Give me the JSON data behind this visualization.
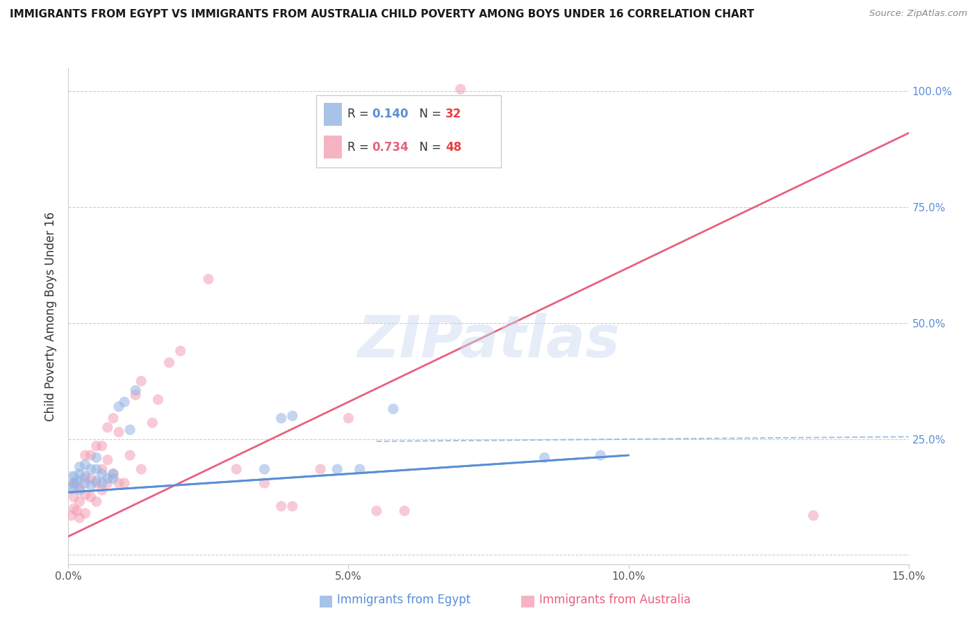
{
  "title": "IMMIGRANTS FROM EGYPT VS IMMIGRANTS FROM AUSTRALIA CHILD POVERTY AMONG BOYS UNDER 16 CORRELATION CHART",
  "source": "Source: ZipAtlas.com",
  "xlabel_egypt": "Immigrants from Egypt",
  "xlabel_australia": "Immigrants from Australia",
  "ylabel": "Child Poverty Among Boys Under 16",
  "xlim": [
    0.0,
    0.15
  ],
  "ylim": [
    -0.02,
    1.05
  ],
  "xticks": [
    0.0,
    0.05,
    0.1,
    0.15
  ],
  "xticklabels": [
    "0.0%",
    "5.0%",
    "10.0%",
    "15.0%"
  ],
  "right_yticks": [
    0.0,
    0.25,
    0.5,
    0.75,
    1.0
  ],
  "right_yticklabels": [
    "",
    "25.0%",
    "50.0%",
    "75.0%",
    "100.0%"
  ],
  "legend_egypt_R": "0.140",
  "legend_egypt_N": "32",
  "legend_australia_R": "0.734",
  "legend_australia_N": "48",
  "color_egypt": "#92B4E3",
  "color_australia": "#F4A0B5",
  "color_egypt_line": "#5B8ED6",
  "color_australia_line": "#E86080",
  "color_dashed": "#92B4E3",
  "color_right_axis": "#5B8ED6",
  "watermark": "ZIPatlas",
  "egypt_x": [
    0.0005,
    0.001,
    0.001,
    0.0015,
    0.002,
    0.002,
    0.002,
    0.003,
    0.003,
    0.003,
    0.004,
    0.004,
    0.005,
    0.005,
    0.005,
    0.006,
    0.006,
    0.007,
    0.008,
    0.008,
    0.009,
    0.01,
    0.011,
    0.012,
    0.035,
    0.038,
    0.04,
    0.048,
    0.052,
    0.058,
    0.085,
    0.095
  ],
  "egypt_y": [
    0.145,
    0.155,
    0.17,
    0.16,
    0.14,
    0.175,
    0.19,
    0.155,
    0.17,
    0.195,
    0.15,
    0.185,
    0.16,
    0.185,
    0.21,
    0.155,
    0.175,
    0.165,
    0.175,
    0.165,
    0.32,
    0.33,
    0.27,
    0.355,
    0.185,
    0.295,
    0.3,
    0.185,
    0.185,
    0.315,
    0.21,
    0.215
  ],
  "australia_x": [
    0.0005,
    0.001,
    0.001,
    0.001,
    0.0015,
    0.002,
    0.002,
    0.002,
    0.003,
    0.003,
    0.003,
    0.003,
    0.004,
    0.004,
    0.004,
    0.005,
    0.005,
    0.005,
    0.006,
    0.006,
    0.006,
    0.007,
    0.007,
    0.007,
    0.008,
    0.008,
    0.009,
    0.009,
    0.01,
    0.011,
    0.012,
    0.013,
    0.013,
    0.015,
    0.016,
    0.018,
    0.02,
    0.025,
    0.03,
    0.035,
    0.038,
    0.04,
    0.045,
    0.05,
    0.055,
    0.06,
    0.07,
    0.133
  ],
  "australia_y": [
    0.085,
    0.1,
    0.125,
    0.155,
    0.095,
    0.08,
    0.115,
    0.145,
    0.09,
    0.13,
    0.165,
    0.215,
    0.125,
    0.165,
    0.215,
    0.115,
    0.155,
    0.235,
    0.14,
    0.185,
    0.235,
    0.155,
    0.205,
    0.275,
    0.175,
    0.295,
    0.155,
    0.265,
    0.155,
    0.215,
    0.345,
    0.375,
    0.185,
    0.285,
    0.335,
    0.415,
    0.44,
    0.595,
    0.185,
    0.155,
    0.105,
    0.105,
    0.185,
    0.295,
    0.095,
    0.095,
    1.005,
    0.085
  ],
  "egypt_line_x0": 0.0,
  "egypt_line_y0": 0.135,
  "egypt_line_x1": 0.1,
  "egypt_line_y1": 0.215,
  "aus_line_x0": 0.0,
  "aus_line_y0": 0.04,
  "aus_line_x1": 0.15,
  "aus_line_y1": 0.91,
  "dashed_line_x0": 0.055,
  "dashed_line_y0": 0.245,
  "dashed_line_x1": 0.15,
  "dashed_line_y1": 0.255
}
